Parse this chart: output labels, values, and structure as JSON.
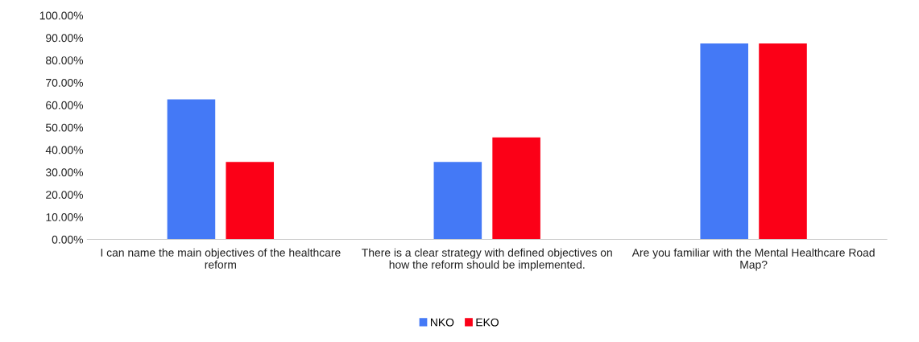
{
  "chart_data": {
    "type": "bar",
    "categories": [
      "I can name the main objectives of the healthcare reform",
      "There is a clear strategy with defined objectives on how the reform should be implemented.",
      "Are you familiar with the Mental Healthcare Road Map?"
    ],
    "series": [
      {
        "name": "NKO",
        "color": "#4479f6",
        "values": [
          62.5,
          34.6,
          87.5
        ]
      },
      {
        "name": "EKO",
        "color": "#fb0017",
        "values": [
          34.6,
          45.5,
          87.5
        ]
      }
    ],
    "ylim": [
      0,
      100
    ],
    "yticks": [
      {
        "value": 0,
        "label": "0.00%"
      },
      {
        "value": 10,
        "label": "10.00%"
      },
      {
        "value": 20,
        "label": "20.00%"
      },
      {
        "value": 30,
        "label": "30.00%"
      },
      {
        "value": 40,
        "label": "40.00%"
      },
      {
        "value": 50,
        "label": "50.00%"
      },
      {
        "value": 60,
        "label": "60.00%"
      },
      {
        "value": 70,
        "label": "70.00%"
      },
      {
        "value": 80,
        "label": "80.00%"
      },
      {
        "value": 90,
        "label": "90.00%"
      },
      {
        "value": 100,
        "label": "100.00%"
      }
    ],
    "grid": false,
    "legend": "bottom"
  }
}
